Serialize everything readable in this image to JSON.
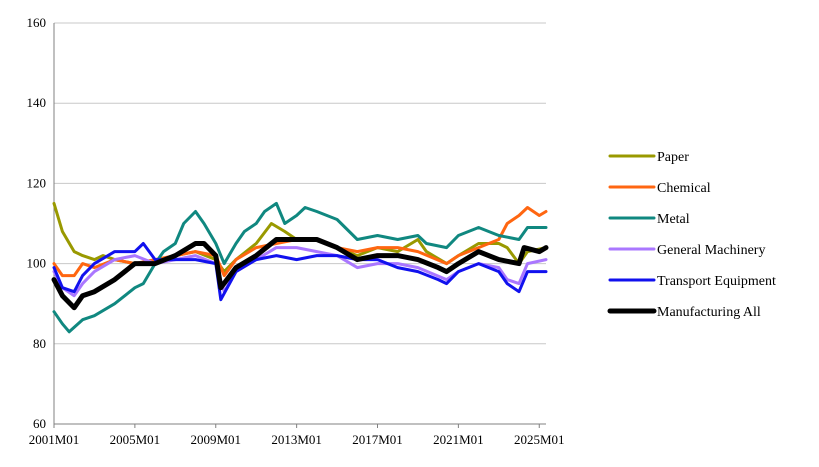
{
  "chart_data": {
    "type": "line",
    "title": "",
    "xlabel": "",
    "ylabel": "",
    "x_ticks": [
      "2001M01",
      "2005M01",
      "2009M01",
      "2013M01",
      "2017M01",
      "2021M01",
      "2025M01"
    ],
    "x_range": [
      "2001M01",
      "2025M05"
    ],
    "y_ticks": [
      60,
      80,
      100,
      120,
      140,
      160
    ],
    "ylim": [
      60,
      160
    ],
    "grid": "horizontal",
    "legend": "right",
    "series": [
      {
        "name": "Paper",
        "color": "#999900",
        "points": [
          [
            "2001M01",
            115
          ],
          [
            "2001M06",
            108
          ],
          [
            "2002M01",
            103
          ],
          [
            "2002M06",
            102
          ],
          [
            "2003M01",
            101
          ],
          [
            "2003M06",
            102
          ],
          [
            "2004M01",
            101
          ],
          [
            "2005M01",
            100
          ],
          [
            "2006M01",
            100
          ],
          [
            "2007M01",
            102
          ],
          [
            "2008M01",
            103
          ],
          [
            "2009M01",
            101
          ],
          [
            "2009M06",
            98
          ],
          [
            "2010M01",
            101
          ],
          [
            "2011M01",
            105
          ],
          [
            "2011M10",
            110
          ],
          [
            "2012M06",
            108
          ],
          [
            "2013M01",
            106
          ],
          [
            "2014M01",
            106
          ],
          [
            "2015M01",
            104
          ],
          [
            "2016M01",
            102
          ],
          [
            "2017M01",
            104
          ],
          [
            "2018M01",
            103
          ],
          [
            "2019M01",
            106
          ],
          [
            "2019M06",
            103
          ],
          [
            "2020M06",
            100
          ],
          [
            "2021M01",
            102
          ],
          [
            "2022M01",
            105
          ],
          [
            "2023M01",
            105
          ],
          [
            "2023M06",
            104
          ],
          [
            "2024M01",
            100
          ],
          [
            "2024M06",
            103
          ],
          [
            "2025M05",
            104
          ]
        ]
      },
      {
        "name": "Chemical",
        "color": "#ff6611",
        "points": [
          [
            "2001M01",
            100
          ],
          [
            "2001M06",
            97
          ],
          [
            "2002M01",
            97
          ],
          [
            "2002M06",
            100
          ],
          [
            "2003M01",
            99
          ],
          [
            "2004M01",
            101
          ],
          [
            "2005M01",
            100
          ],
          [
            "2006M01",
            101
          ],
          [
            "2007M01",
            102
          ],
          [
            "2008M01",
            103
          ],
          [
            "2009M01",
            102
          ],
          [
            "2009M06",
            97
          ],
          [
            "2010M01",
            101
          ],
          [
            "2011M01",
            104
          ],
          [
            "2012M01",
            105
          ],
          [
            "2013M01",
            106
          ],
          [
            "2014M01",
            106
          ],
          [
            "2015M01",
            104
          ],
          [
            "2016M01",
            103
          ],
          [
            "2017M01",
            104
          ],
          [
            "2018M01",
            104
          ],
          [
            "2019M01",
            103
          ],
          [
            "2020M06",
            100
          ],
          [
            "2021M01",
            102
          ],
          [
            "2022M01",
            104
          ],
          [
            "2023M01",
            106
          ],
          [
            "2023M06",
            110
          ],
          [
            "2024M01",
            112
          ],
          [
            "2024M06",
            114
          ],
          [
            "2025M01",
            112
          ],
          [
            "2025M05",
            113
          ]
        ]
      },
      {
        "name": "Metal",
        "color": "#108880",
        "points": [
          [
            "2001M01",
            88
          ],
          [
            "2001M06",
            85
          ],
          [
            "2001M10",
            83
          ],
          [
            "2002M06",
            86
          ],
          [
            "2003M01",
            87
          ],
          [
            "2004M01",
            90
          ],
          [
            "2005M01",
            94
          ],
          [
            "2005M06",
            95
          ],
          [
            "2006M01",
            100
          ],
          [
            "2006M06",
            103
          ],
          [
            "2007M01",
            105
          ],
          [
            "2007M06",
            110
          ],
          [
            "2008M01",
            113
          ],
          [
            "2008M06",
            110
          ],
          [
            "2009M01",
            105
          ],
          [
            "2009M06",
            100
          ],
          [
            "2010M01",
            105
          ],
          [
            "2010M06",
            108
          ],
          [
            "2011M01",
            110
          ],
          [
            "2011M06",
            113
          ],
          [
            "2012M01",
            115
          ],
          [
            "2012M06",
            110
          ],
          [
            "2013M01",
            112
          ],
          [
            "2013M06",
            114
          ],
          [
            "2014M01",
            113
          ],
          [
            "2015M01",
            111
          ],
          [
            "2016M01",
            106
          ],
          [
            "2017M01",
            107
          ],
          [
            "2018M01",
            106
          ],
          [
            "2019M01",
            107
          ],
          [
            "2019M06",
            105
          ],
          [
            "2020M06",
            104
          ],
          [
            "2021M01",
            107
          ],
          [
            "2022M01",
            109
          ],
          [
            "2023M01",
            107
          ],
          [
            "2024M01",
            106
          ],
          [
            "2024M06",
            109
          ],
          [
            "2025M05",
            109
          ]
        ]
      },
      {
        "name": "General Machinery",
        "color": "#aa77ff",
        "points": [
          [
            "2001M01",
            98
          ],
          [
            "2001M06",
            94
          ],
          [
            "2002M01",
            92
          ],
          [
            "2002M06",
            95
          ],
          [
            "2003M01",
            98
          ],
          [
            "2004M01",
            101
          ],
          [
            "2005M01",
            102
          ],
          [
            "2006M01",
            100
          ],
          [
            "2007M01",
            101
          ],
          [
            "2008M01",
            102
          ],
          [
            "2009M01",
            100
          ],
          [
            "2009M06",
            93
          ],
          [
            "2010M01",
            98
          ],
          [
            "2011M01",
            101
          ],
          [
            "2012M01",
            104
          ],
          [
            "2013M01",
            104
          ],
          [
            "2014M01",
            103
          ],
          [
            "2015M01",
            102
          ],
          [
            "2016M01",
            99
          ],
          [
            "2017M01",
            100
          ],
          [
            "2018M01",
            100
          ],
          [
            "2019M01",
            99
          ],
          [
            "2020M06",
            96
          ],
          [
            "2021M01",
            98
          ],
          [
            "2022M01",
            100
          ],
          [
            "2023M01",
            99
          ],
          [
            "2023M06",
            96
          ],
          [
            "2024M01",
            95
          ],
          [
            "2024M06",
            100
          ],
          [
            "2025M05",
            101
          ]
        ]
      },
      {
        "name": "Transport Equipment",
        "color": "#1111ee",
        "points": [
          [
            "2001M01",
            99
          ],
          [
            "2001M06",
            94
          ],
          [
            "2002M01",
            93
          ],
          [
            "2002M06",
            97
          ],
          [
            "2003M01",
            100
          ],
          [
            "2004M01",
            103
          ],
          [
            "2005M01",
            103
          ],
          [
            "2005M06",
            105
          ],
          [
            "2006M01",
            101
          ],
          [
            "2007M01",
            101
          ],
          [
            "2008M01",
            101
          ],
          [
            "2009M01",
            100
          ],
          [
            "2009M04",
            91
          ],
          [
            "2010M01",
            98
          ],
          [
            "2011M01",
            101
          ],
          [
            "2012M01",
            102
          ],
          [
            "2013M01",
            101
          ],
          [
            "2014M01",
            102
          ],
          [
            "2015M01",
            102
          ],
          [
            "2016M01",
            101
          ],
          [
            "2017M01",
            101
          ],
          [
            "2018M01",
            99
          ],
          [
            "2019M01",
            98
          ],
          [
            "2020M01",
            96
          ],
          [
            "2020M06",
            95
          ],
          [
            "2021M01",
            98
          ],
          [
            "2022M01",
            100
          ],
          [
            "2023M01",
            98
          ],
          [
            "2023M06",
            95
          ],
          [
            "2024M01",
            93
          ],
          [
            "2024M06",
            98
          ],
          [
            "2025M05",
            98
          ]
        ]
      },
      {
        "name": "Manufacturing All",
        "color": "#000000",
        "points": [
          [
            "2001M01",
            96
          ],
          [
            "2001M06",
            92
          ],
          [
            "2002M01",
            89
          ],
          [
            "2002M06",
            92
          ],
          [
            "2003M01",
            93
          ],
          [
            "2004M01",
            96
          ],
          [
            "2005M01",
            100
          ],
          [
            "2006M01",
            100
          ],
          [
            "2007M01",
            102
          ],
          [
            "2008M01",
            105
          ],
          [
            "2008M06",
            105
          ],
          [
            "2009M01",
            102
          ],
          [
            "2009M04",
            94
          ],
          [
            "2010M01",
            99
          ],
          [
            "2011M01",
            102
          ],
          [
            "2012M01",
            106
          ],
          [
            "2013M01",
            106
          ],
          [
            "2014M01",
            106
          ],
          [
            "2015M01",
            104
          ],
          [
            "2016M01",
            101
          ],
          [
            "2017M01",
            102
          ],
          [
            "2018M01",
            102
          ],
          [
            "2019M01",
            101
          ],
          [
            "2020M01",
            99
          ],
          [
            "2020M06",
            98
          ],
          [
            "2021M01",
            100
          ],
          [
            "2022M01",
            103
          ],
          [
            "2023M01",
            101
          ],
          [
            "2024M01",
            100
          ],
          [
            "2024M04",
            104
          ],
          [
            "2025M01",
            103
          ],
          [
            "2025M05",
            104
          ]
        ]
      }
    ]
  }
}
